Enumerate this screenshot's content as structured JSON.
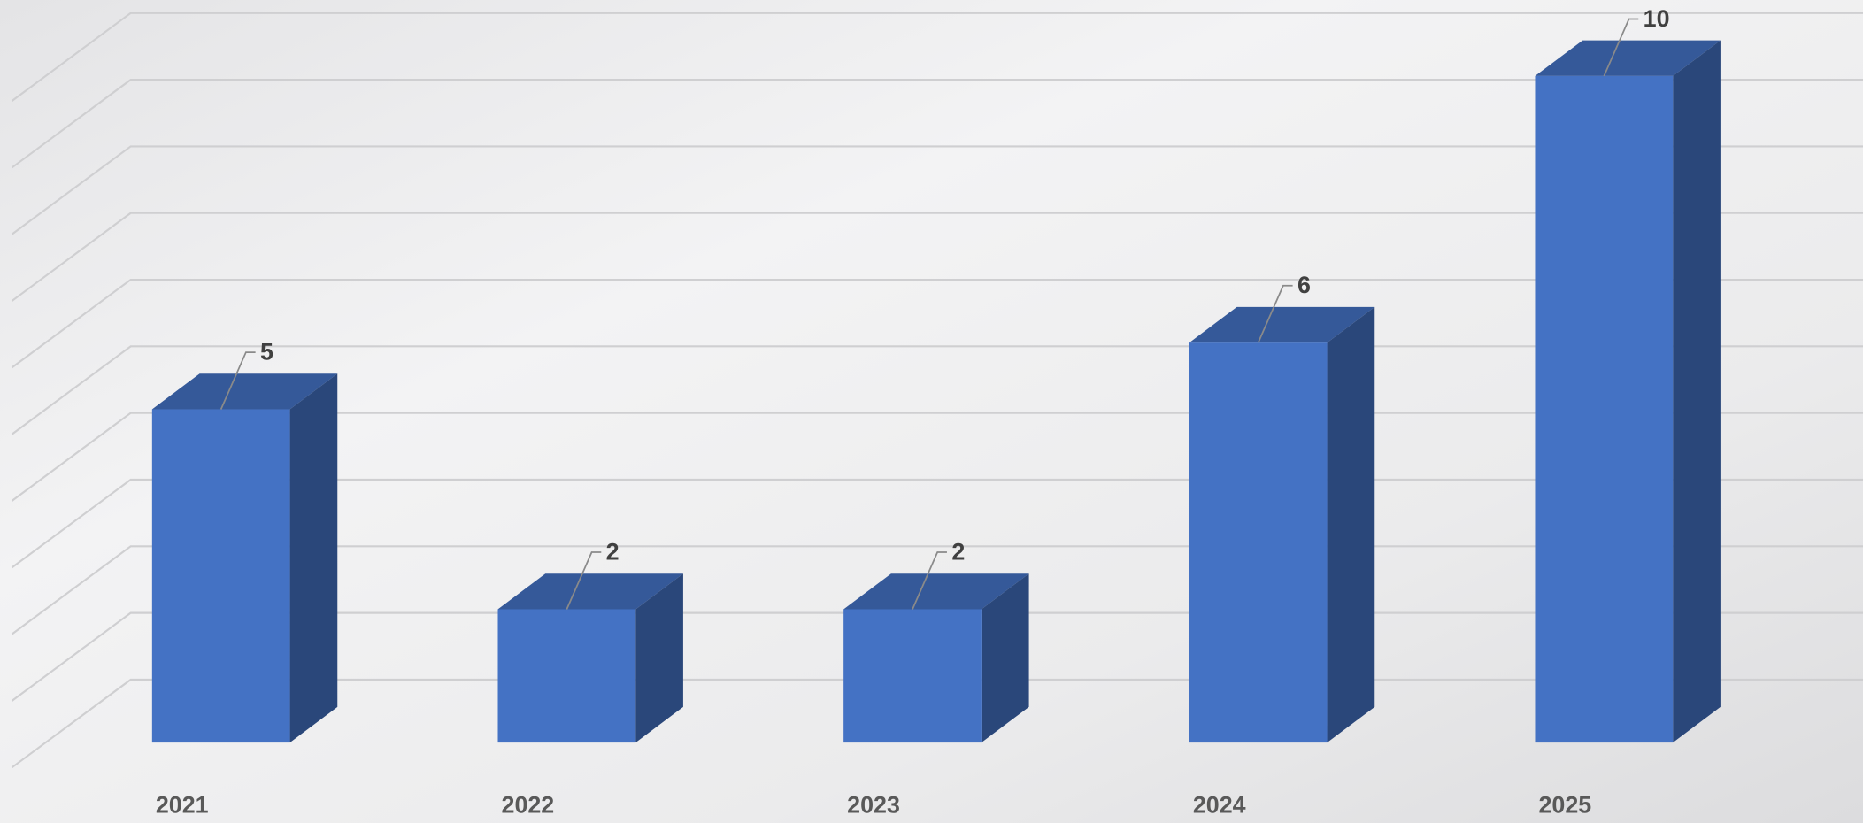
{
  "chart_data": {
    "type": "bar3d",
    "categories": [
      "2021",
      "2022",
      "2023",
      "2024",
      "2025"
    ],
    "values": [
      5,
      2,
      2,
      6,
      10
    ],
    "color": "#4472c4",
    "ylim": [
      0,
      10
    ],
    "yticks": [
      0,
      1,
      2,
      3,
      4,
      5,
      6,
      7,
      8,
      9,
      10
    ],
    "grid": true
  }
}
